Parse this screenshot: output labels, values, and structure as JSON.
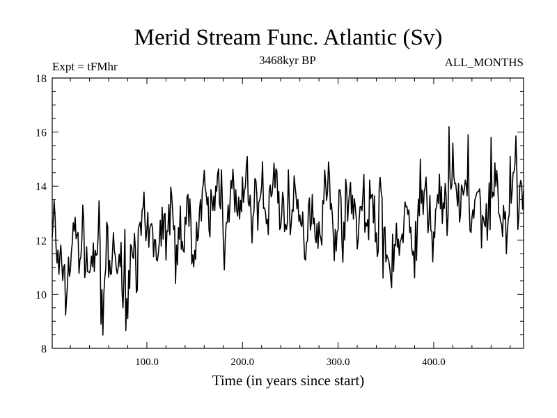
{
  "chart_data": {
    "type": "line",
    "title": "Merid Stream Func. Atlantic (Sv)",
    "subtitle_left": "Expt = tFMhr",
    "subtitle_center": "3468kyr BP",
    "subtitle_right": "ALL_MONTHS",
    "xlabel": "Time (in years since start)",
    "ylabel": "",
    "xlim": [
      1,
      494
    ],
    "ylim": [
      8,
      18
    ],
    "x_ticks": [
      100,
      200,
      300,
      400
    ],
    "x_tick_labels": [
      "100.0",
      "200.0",
      "300.0",
      "400.0"
    ],
    "y_ticks": [
      8,
      10,
      12,
      14,
      16,
      18
    ],
    "y_tick_labels": [
      "8",
      "10",
      "12",
      "14",
      "16",
      "18"
    ],
    "x_start": 1,
    "x_step": 1,
    "line_color": "#000000",
    "series": [
      {
        "name": "Merid Stream Func. Atlantic",
        "anchor_x": [
          1,
          3,
          6,
          9,
          12,
          15,
          18,
          22,
          26,
          30,
          34,
          38,
          42,
          46,
          50,
          54,
          58,
          62,
          66,
          70,
          74,
          78,
          82,
          86,
          90,
          95,
          100,
          105,
          110,
          115,
          120,
          125,
          130,
          135,
          140,
          145,
          150,
          155,
          160,
          165,
          170,
          175,
          180,
          185,
          190,
          195,
          200,
          205,
          210,
          215,
          220,
          225,
          230,
          235,
          240,
          245,
          250,
          255,
          260,
          265,
          270,
          275,
          280,
          285,
          290,
          295,
          300,
          305,
          310,
          315,
          320,
          325,
          330,
          335,
          340,
          345,
          350,
          355,
          360,
          365,
          370,
          375,
          380,
          385,
          390,
          395,
          400,
          405,
          410,
          415,
          420,
          425,
          430,
          435,
          440,
          445,
          450,
          455,
          460,
          465,
          470,
          475,
          480,
          485,
          490,
          494
        ],
        "anchor_y": [
          12.4,
          13.1,
          11.2,
          10.6,
          11.3,
          9.9,
          10.9,
          11.8,
          12.4,
          11.5,
          12.2,
          11.0,
          10.8,
          11.6,
          12.1,
          9.0,
          11.8,
          10.6,
          12.3,
          10.0,
          11.5,
          9.2,
          10.9,
          12.4,
          11.0,
          12.8,
          11.9,
          12.2,
          11.5,
          12.6,
          12.1,
          13.8,
          11.0,
          12.6,
          12.3,
          13.2,
          11.4,
          12.9,
          13.6,
          12.8,
          13.3,
          14.3,
          12.6,
          13.4,
          13.8,
          12.9,
          13.2,
          14.4,
          12.8,
          13.5,
          14.1,
          12.6,
          13.6,
          14.8,
          12.6,
          13.5,
          12.4,
          13.3,
          12.8,
          11.7,
          13.4,
          12.9,
          12.2,
          13.6,
          14.1,
          12.0,
          13.3,
          12.6,
          13.2,
          14.0,
          12.3,
          13.4,
          12.8,
          13.7,
          12.1,
          13.5,
          11.8,
          10.8,
          12.4,
          11.5,
          13.0,
          12.1,
          11.9,
          12.6,
          13.8,
          13.0,
          12.3,
          13.9,
          13.4,
          12.6,
          14.6,
          13.1,
          14.2,
          13.5,
          12.2,
          13.7,
          12.6,
          13.4,
          12.9,
          14.7,
          12.6,
          13.2,
          12.6,
          14.8,
          13.6,
          13.3
        ],
        "spikes_x": [
          44,
          52,
          70,
          77,
          80,
          124,
          130,
          178,
          181,
          248,
          290,
          298,
          342,
          347,
          350,
          360,
          386,
          399,
          416,
          421,
          436,
          448,
          456,
          460,
          468,
          476,
          480,
          488
        ],
        "spikes_y": [
          11.9,
          8.9,
          11.0,
          12.4,
          9.1,
          12.2,
          10.4,
          14.6,
          10.9,
          14.6,
          14.9,
          11.6,
          11.6,
          10.6,
          11.2,
          11.8,
          15.0,
          11.2,
          16.2,
          14.4,
          15.9,
          13.9,
          12.0,
          15.8,
          13.0,
          11.5,
          15.1,
          12.4
        ],
        "noise_amplitude": 0.55,
        "noise_seed": 7
      }
    ]
  }
}
